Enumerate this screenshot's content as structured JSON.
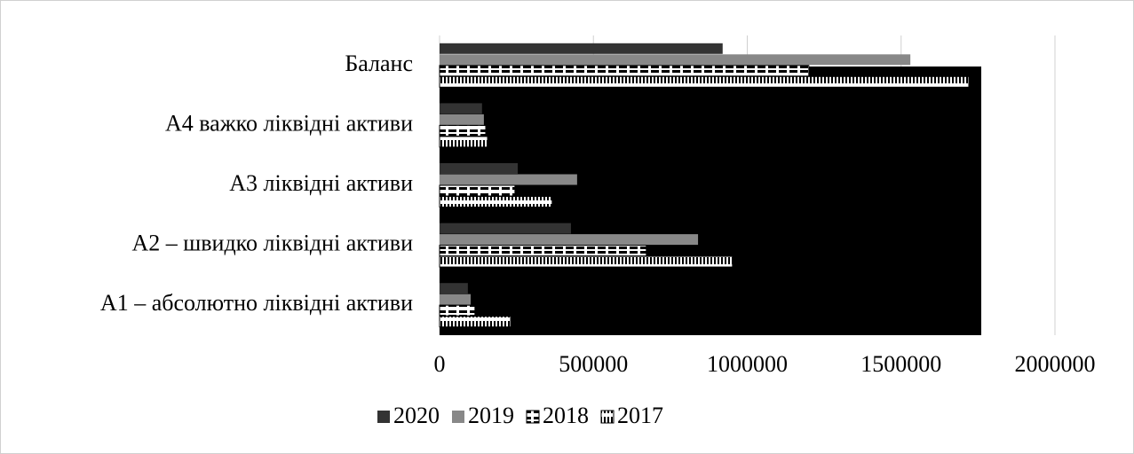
{
  "chart_data": {
    "type": "bar",
    "orientation": "horizontal",
    "categories": [
      "А1 – абсолютно ліквідні активи",
      "А2 – швидко ліквідні активи",
      "А3 ліквідні активи",
      "А4 важко ліквідні активи",
      "Баланс"
    ],
    "series": [
      {
        "name": "2020",
        "color": "#333333",
        "values": [
          92000,
          427000,
          254000,
          138000,
          920000
        ]
      },
      {
        "name": "2019",
        "color": "#888888",
        "values": [
          101000,
          840000,
          447000,
          144000,
          1530000
        ]
      },
      {
        "name": "2018",
        "color": "#ffffff",
        "values": [
          115000,
          672000,
          245000,
          150000,
          1200000
        ]
      },
      {
        "name": "2017",
        "color": "#ffffff",
        "values": [
          231000,
          952000,
          366000,
          156000,
          1720000
        ]
      }
    ],
    "xlim": [
      0,
      2000000
    ],
    "xticks": [
      0,
      500000,
      1000000,
      1500000,
      2000000
    ],
    "grid": true,
    "legend": "bottom"
  }
}
